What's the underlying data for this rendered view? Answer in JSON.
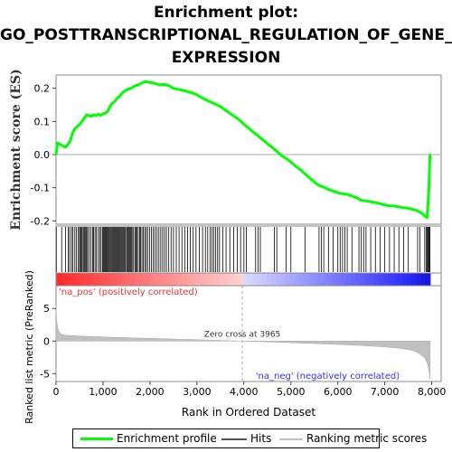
{
  "title_lines": [
    "Enrichment plot:",
    "GO_POSTTRANSCRIPTIONAL_REGULATION_OF_GENE_",
    "EXPRESSION"
  ],
  "legend": [
    {
      "label": "Enrichment profile",
      "color": "#00ff00"
    },
    {
      "label": "Hits",
      "color": "#000000"
    },
    {
      "label": "Ranking metric scores",
      "color": "#c0c0c0"
    }
  ],
  "chart_data": {
    "type": "line",
    "es_panel": {
      "ylabel": "Enrichment score (ES)",
      "ylim": [
        -0.21,
        0.24
      ],
      "yticks": [
        0.2,
        0.1,
        0.0,
        -0.1,
        -0.2
      ],
      "ytick_labels": [
        "0.2",
        "0.1",
        "0.0",
        "-0.1",
        "-0.2"
      ],
      "color": "#00ff00",
      "series": {
        "name": "Enrichment profile",
        "x": [
          0,
          30,
          100,
          200,
          250,
          300,
          350,
          400,
          450,
          500,
          550,
          600,
          650,
          700,
          750,
          800,
          850,
          900,
          950,
          1000,
          1050,
          1100,
          1150,
          1200,
          1250,
          1300,
          1350,
          1400,
          1450,
          1500,
          1550,
          1600,
          1650,
          1700,
          1750,
          1800,
          1850,
          1900,
          1950,
          2000,
          2100,
          2200,
          2300,
          2400,
          2500,
          2600,
          2700,
          2800,
          2900,
          3000,
          3100,
          3200,
          3300,
          3400,
          3500,
          3600,
          3700,
          3800,
          3900,
          4000,
          4100,
          4200,
          4300,
          4400,
          4500,
          4600,
          4700,
          4800,
          4900,
          5000,
          5100,
          5200,
          5300,
          5400,
          5500,
          5600,
          5700,
          5800,
          5900,
          6000,
          6100,
          6200,
          6300,
          6400,
          6500,
          6600,
          6700,
          6800,
          6900,
          7000,
          7100,
          7200,
          7300,
          7400,
          7500,
          7600,
          7700,
          7800,
          7850,
          7900,
          7920,
          7940,
          7950,
          7960,
          7965
        ],
        "y": [
          0.0,
          0.035,
          0.03,
          0.022,
          0.03,
          0.04,
          0.065,
          0.078,
          0.085,
          0.09,
          0.1,
          0.11,
          0.12,
          0.118,
          0.115,
          0.12,
          0.118,
          0.122,
          0.118,
          0.123,
          0.125,
          0.13,
          0.145,
          0.155,
          0.16,
          0.17,
          0.175,
          0.185,
          0.19,
          0.195,
          0.198,
          0.2,
          0.205,
          0.208,
          0.21,
          0.214,
          0.217,
          0.22,
          0.219,
          0.218,
          0.215,
          0.21,
          0.212,
          0.208,
          0.2,
          0.197,
          0.194,
          0.19,
          0.186,
          0.18,
          0.172,
          0.165,
          0.158,
          0.152,
          0.145,
          0.135,
          0.125,
          0.115,
          0.105,
          0.092,
          0.08,
          0.068,
          0.057,
          0.045,
          0.033,
          0.022,
          0.01,
          -0.003,
          -0.012,
          -0.022,
          -0.035,
          -0.045,
          -0.058,
          -0.07,
          -0.083,
          -0.093,
          -0.098,
          -0.105,
          -0.11,
          -0.115,
          -0.118,
          -0.12,
          -0.125,
          -0.13,
          -0.138,
          -0.14,
          -0.142,
          -0.145,
          -0.148,
          -0.152,
          -0.155,
          -0.155,
          -0.158,
          -0.16,
          -0.162,
          -0.165,
          -0.17,
          -0.178,
          -0.185,
          -0.19,
          -0.15,
          -0.1,
          -0.05,
          -0.01,
          0.002
        ]
      }
    },
    "hits": [
      5,
      120,
      200,
      260,
      290,
      330,
      360,
      400,
      430,
      470,
      500,
      520,
      540,
      560,
      590,
      610,
      630,
      650,
      670,
      700,
      740,
      780,
      800,
      830,
      860,
      900,
      930,
      960,
      990,
      1010,
      1030,
      1050,
      1070,
      1090,
      1110,
      1130,
      1150,
      1170,
      1190,
      1210,
      1230,
      1250,
      1270,
      1290,
      1310,
      1330,
      1350,
      1370,
      1390,
      1410,
      1430,
      1450,
      1470,
      1500,
      1520,
      1540,
      1560,
      1580,
      1600,
      1620,
      1650,
      1680,
      1700,
      1720,
      1750,
      1780,
      1800,
      1830,
      1860,
      1890,
      1920,
      1950,
      1990,
      2030,
      2070,
      2110,
      2150,
      2190,
      2230,
      2270,
      2310,
      2350,
      2400,
      2450,
      2500,
      2560,
      2620,
      2680,
      2740,
      2800,
      2860,
      2920,
      2980,
      3050,
      3120,
      3180,
      3230,
      3280,
      3320,
      3360,
      3400,
      3440,
      3480,
      3550,
      3620,
      3700,
      3780,
      3860,
      3930,
      4000,
      4050,
      4250,
      4300,
      4350,
      4650,
      4700,
      4900,
      5000,
      5300,
      5600,
      5650,
      5700,
      5800,
      5900,
      6000,
      6050,
      6100,
      6150,
      6200,
      6300,
      6450,
      6500,
      6550,
      6600,
      6700,
      6800,
      6900,
      7000,
      7100,
      7200,
      7300,
      7400,
      7500,
      7700,
      7750,
      7850,
      7880,
      7900,
      7920,
      7940,
      7950,
      7960
    ],
    "ranked_panel": {
      "ylabel": "Ranked list metric (PreRanked)",
      "ylim": [
        -6.2,
        8.5
      ],
      "yticks": [
        5,
        0,
        -5
      ],
      "ytick_labels": [
        "5",
        "0",
        "-5"
      ],
      "color": "#c0c0c0",
      "metric_x": [
        0,
        10,
        30,
        60,
        100,
        200,
        400,
        700,
        1000,
        1500,
        2000,
        2500,
        3000,
        3500,
        3965,
        4500,
        5000,
        5500,
        6000,
        6500,
        7000,
        7300,
        7500,
        7650,
        7750,
        7850,
        7900,
        7930,
        7950,
        7960,
        7965
      ],
      "metric_y": [
        5.5,
        3.5,
        2.2,
        1.5,
        1.1,
        0.9,
        0.8,
        0.7,
        0.62,
        0.52,
        0.42,
        0.32,
        0.22,
        0.1,
        0.0,
        -0.12,
        -0.25,
        -0.38,
        -0.52,
        -0.68,
        -0.9,
        -1.1,
        -1.3,
        -1.6,
        -2.0,
        -2.6,
        -3.3,
        -4.2,
        -5.0,
        -5.6,
        -5.9
      ],
      "zero_cross_label": "Zero cross at 3965",
      "zero_cross_x": 3965,
      "pos_label": "'na_pos' (positively correlated)",
      "neg_label": "'na_neg' (negatively correlated)"
    },
    "xlabel": "Rank in Ordered Dataset",
    "xlim": [
      0,
      8200
    ],
    "xticks": [
      0,
      1000,
      2000,
      3000,
      4000,
      5000,
      6000,
      7000,
      8000
    ],
    "xtick_labels": [
      "0",
      "1,000",
      "2,000",
      "3,000",
      "4,000",
      "5,000",
      "6,000",
      "7,000",
      "8,000"
    ],
    "n_genes": 7965,
    "grid": false,
    "legend_position": "bottom"
  }
}
